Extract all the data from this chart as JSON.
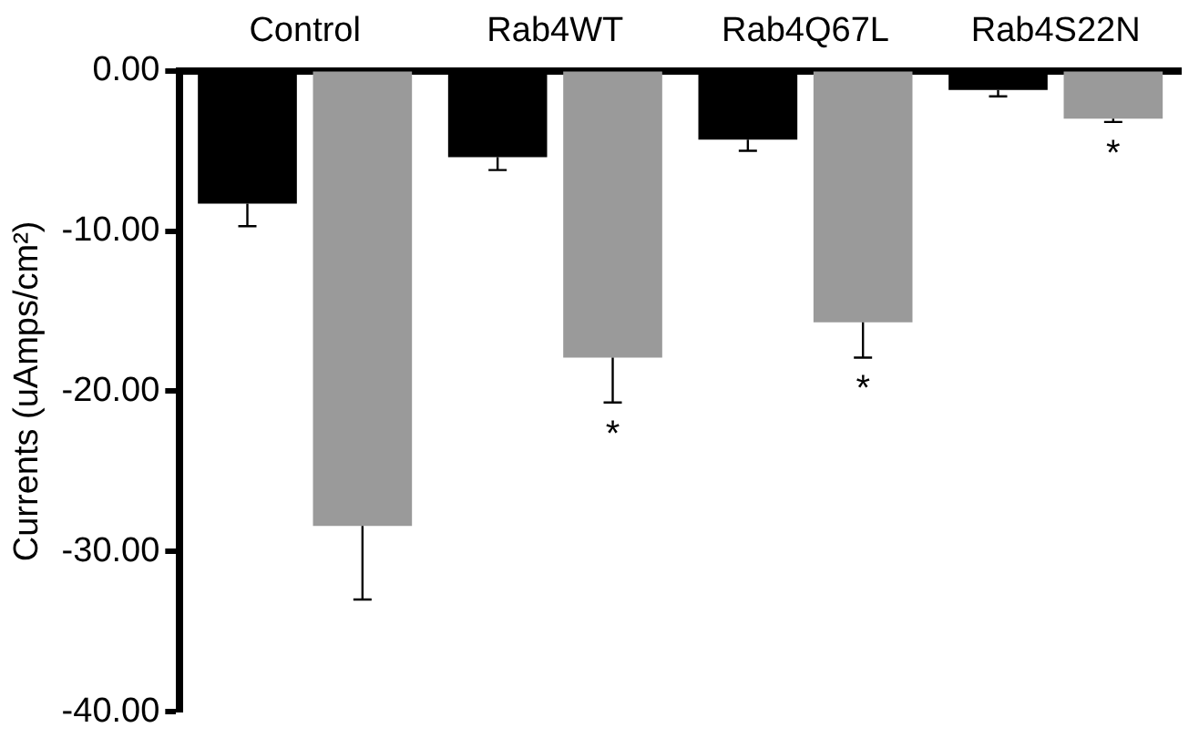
{
  "chart_data": {
    "type": "bar",
    "ylabel": "Currents (uAmps/cm²)",
    "categories": [
      "Control",
      "Rab4WT",
      "Rab4Q67L",
      "Rab4S22N"
    ],
    "series": [
      {
        "color": "#000000",
        "values": [
          -8.3,
          -5.4,
          -4.3,
          -1.2
        ],
        "errors": [
          [
            -9.7,
            -8.3
          ],
          [
            -6.2,
            -5.4
          ],
          [
            -5.0,
            -4.3
          ],
          [
            -1.6,
            -1.2
          ]
        ]
      },
      {
        "color": "#9a9a9a",
        "values": [
          -28.4,
          -17.9,
          -15.7,
          -3.0
        ],
        "errors": [
          [
            -33.0,
            -28.4
          ],
          [
            -20.7,
            -17.9
          ],
          [
            -17.9,
            -15.7
          ],
          [
            -3.2,
            -3.0
          ]
        ]
      }
    ],
    "ylim": [
      -40,
      0
    ],
    "yticks": [
      {
        "value": 0,
        "label": "0.00"
      },
      {
        "value": -10,
        "label": "-10.00"
      },
      {
        "value": -20,
        "label": "-20.00"
      },
      {
        "value": -30,
        "label": "-30.00"
      },
      {
        "value": -40,
        "label": "-40.00"
      }
    ],
    "annotations": [
      {
        "text": "*",
        "x": "Rab4WT",
        "y": -17.9
      },
      {
        "text": "*",
        "x": "Rab4Q67L",
        "y": -15.7
      },
      {
        "text": "*",
        "x": "Rab4S22N",
        "y": -3.0
      }
    ],
    "grid": false,
    "legend": false
  }
}
